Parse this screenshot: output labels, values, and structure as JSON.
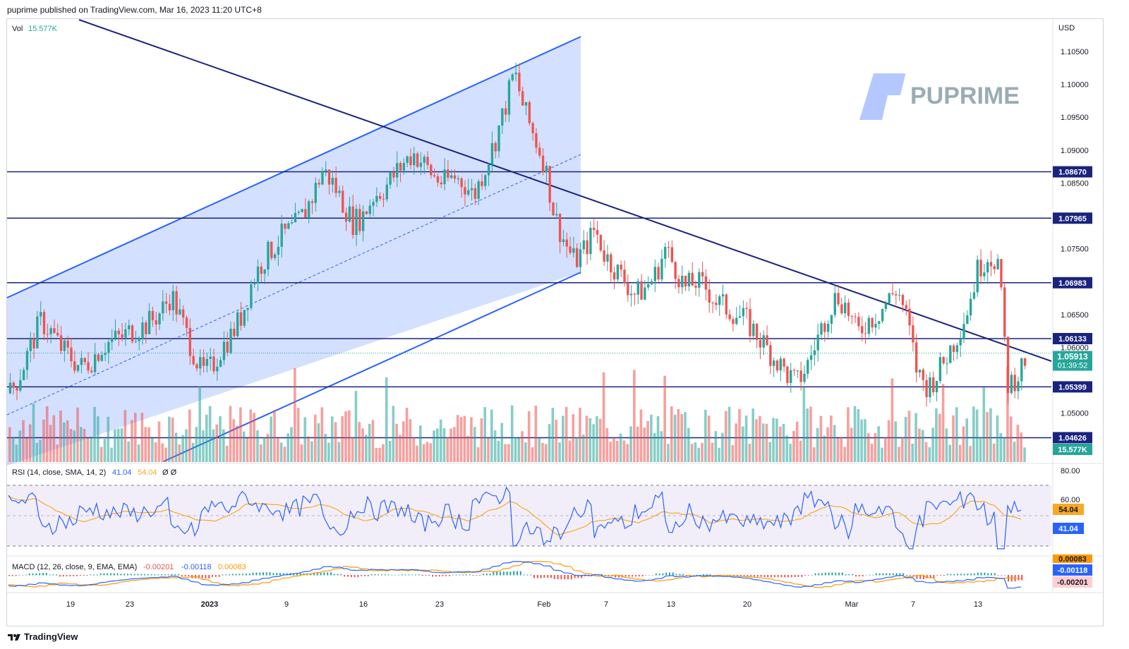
{
  "header": {
    "publish_text": "puprime published on TradingView.com, Mar 16, 2023 11:20 UTC+8"
  },
  "footer": {
    "brand": "TradingView",
    "brand_icon": "tradingview-logo-icon"
  },
  "watermark": {
    "text": "PUPRIME",
    "icon": "puprime-logo-icon"
  },
  "volume_legend": {
    "label": "Vol",
    "value": "15.577K"
  },
  "price_axis": {
    "currency": "USD",
    "ticks": [
      "1.10500",
      "1.10000",
      "1.09500",
      "1.09000",
      "1.08500",
      "1.08000",
      "1.07500",
      "1.07000",
      "1.06500",
      "1.06000",
      "1.05500",
      "1.05000"
    ],
    "tick_values": [
      1.105,
      1.1,
      1.095,
      1.09,
      1.085,
      1.08,
      1.075,
      1.07,
      1.065,
      1.06,
      1.055,
      1.05
    ],
    "current_price": "1.05913",
    "current_value": 1.05913,
    "countdown": "01:39:52",
    "volume_tag": "15.577K"
  },
  "levels": [
    {
      "label": "1.08670",
      "value": 1.0867
    },
    {
      "label": "1.07965",
      "value": 1.07965
    },
    {
      "label": "1.06983",
      "value": 1.06983
    },
    {
      "label": "1.06133",
      "value": 1.06133
    },
    {
      "label": "1.05399",
      "value": 1.05399
    },
    {
      "label": "1.04626",
      "value": 1.04626
    }
  ],
  "x_axis": {
    "labels": [
      "19",
      "23",
      "2023",
      "9",
      "16",
      "23",
      "Feb",
      "7",
      "13",
      "20",
      "Mar",
      "7",
      "13"
    ]
  },
  "rsi": {
    "legend_title": "RSI (14, close, SMA, 14, 2)",
    "rsi_value": "41.04",
    "sma_value": "54.04",
    "extra": "Ø Ø",
    "axis_ticks": [
      "80.00",
      "60.00"
    ]
  },
  "macd": {
    "legend_title": "MACD (12, 26, close, 9, EMA, EMA)",
    "hist_value": "-0.00201",
    "macd_value": "-0.00118",
    "signal_value": "0.00083"
  },
  "colors": {
    "up": "#26a69a",
    "down": "#ef5350",
    "level": "#1a237e",
    "channel": "#2962ff",
    "rsi": "#2962ff",
    "rsi_sma": "#f9a825",
    "macd": "#2962ff",
    "signal": "#ff9800"
  },
  "chart_data": {
    "type": "candlestick",
    "symbol_currency": "USD",
    "series_close": [
      1.053,
      1.056,
      1.06,
      1.064,
      1.0625,
      1.06,
      1.0585,
      1.057,
      1.058,
      1.06,
      1.061,
      1.0615,
      1.0625,
      1.063,
      1.064,
      1.0655,
      1.068,
      1.064,
      1.06,
      1.056,
      1.057,
      1.06,
      1.062,
      1.065,
      1.07,
      1.073,
      1.075,
      1.077,
      1.078,
      1.08,
      1.083,
      1.087,
      1.085,
      1.082,
      1.079,
      1.08,
      1.083,
      1.084,
      1.086,
      1.088,
      1.0895,
      1.088,
      1.086,
      1.085,
      1.086,
      1.085,
      1.083,
      1.087,
      1.091,
      1.096,
      1.102,
      1.096,
      1.092,
      1.088,
      1.08,
      1.076,
      1.073,
      1.075,
      1.078,
      1.074,
      1.072,
      1.07,
      1.068,
      1.069,
      1.071,
      1.075,
      1.072,
      1.069,
      1.07,
      1.069,
      1.067,
      1.066,
      1.065,
      1.064,
      1.062,
      1.06,
      1.058,
      1.056,
      1.0545,
      1.057,
      1.061,
      1.065,
      1.068,
      1.066,
      1.062,
      1.064,
      1.065,
      1.067,
      1.069,
      1.064,
      1.056,
      1.054,
      1.056,
      1.059,
      1.062,
      1.066,
      1.072,
      1.074,
      1.073,
      1.054,
      1.056,
      1.0591
    ]
  }
}
